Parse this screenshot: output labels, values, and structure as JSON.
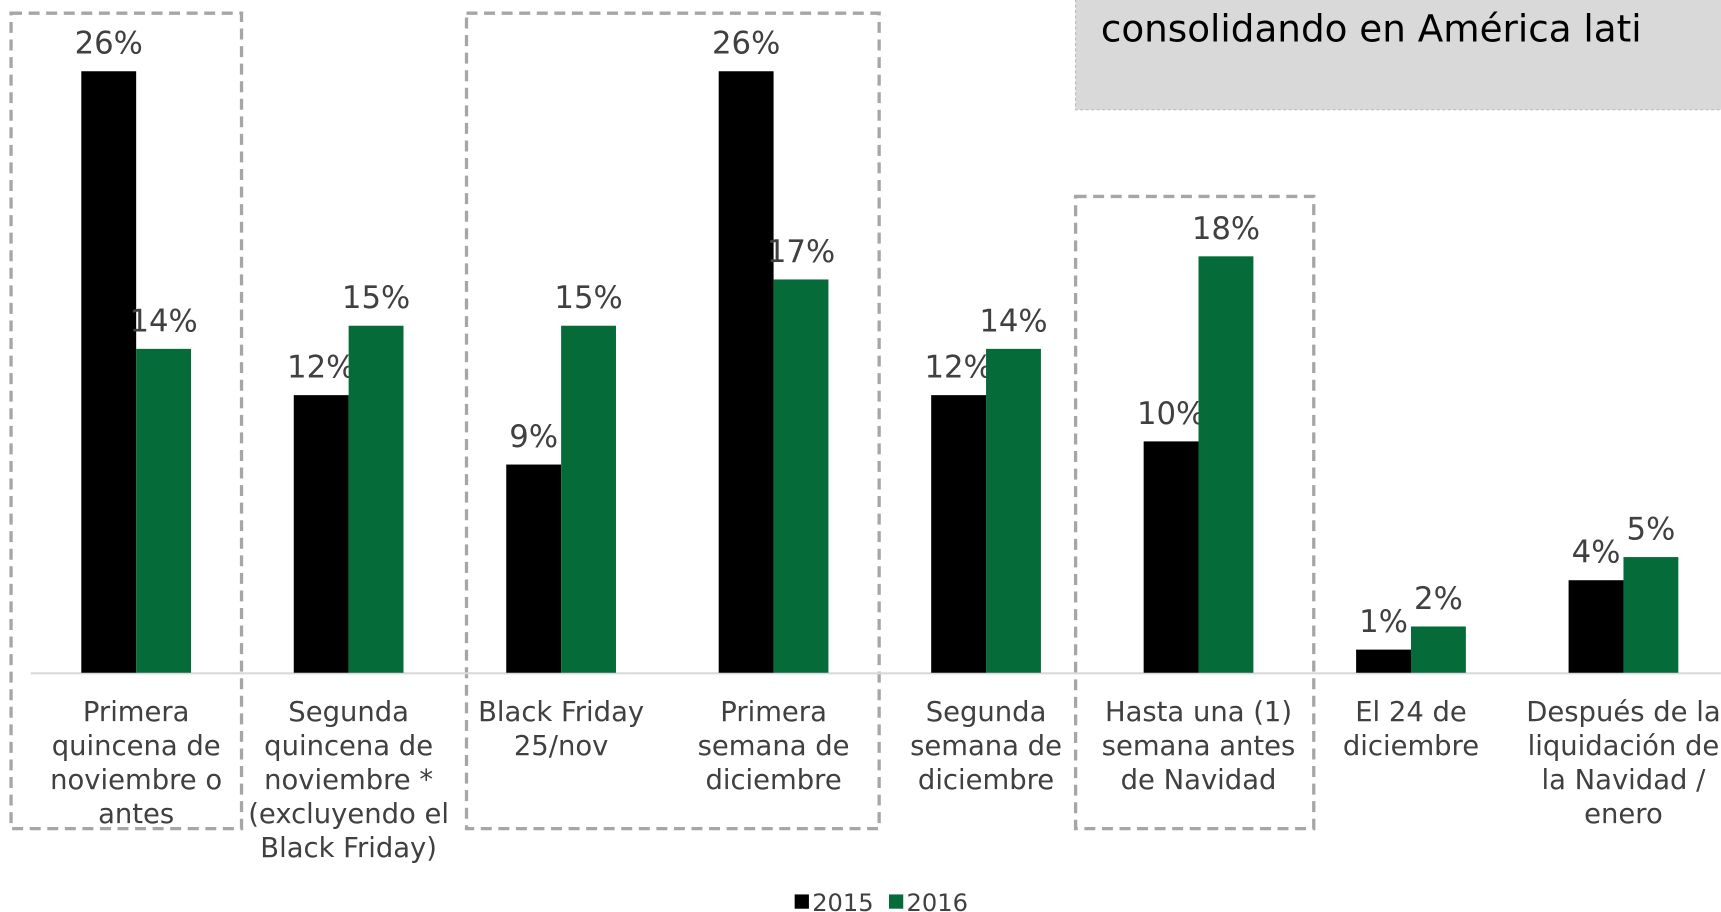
{
  "chart_data": {
    "type": "bar",
    "title": "consolidando en América lati",
    "categories": [
      "Primera\nquincena de\nnoviembre o\nantes",
      "Segunda\nquincena de\nnoviembre *\n(excluyendo el\nBlack Friday)",
      "Black Friday\n25/nov",
      "Primera\nsemana de\ndiciembre",
      "Segunda\nsemana de\ndiciembre",
      "Hasta una (1)\nsemana antes\nde Navidad",
      "El 24 de\ndiciembre",
      "Después de la\nliquidación de\nla Navidad /\nenero"
    ],
    "series": [
      {
        "name": "2015",
        "color": "#000000",
        "values": [
          26,
          12,
          9,
          26,
          12,
          10,
          1,
          4
        ],
        "value_labels": [
          "26%",
          "12%",
          "9%",
          "26%",
          "12%",
          "10%",
          "1%",
          "4%"
        ]
      },
      {
        "name": "2016",
        "color": "#056b38",
        "values": [
          14,
          15,
          15,
          17,
          14,
          18,
          2,
          5
        ],
        "value_labels": [
          "14%",
          "15%",
          "15%",
          "17%",
          "14%",
          "18%",
          "2%",
          "5%"
        ]
      }
    ]
  }
}
